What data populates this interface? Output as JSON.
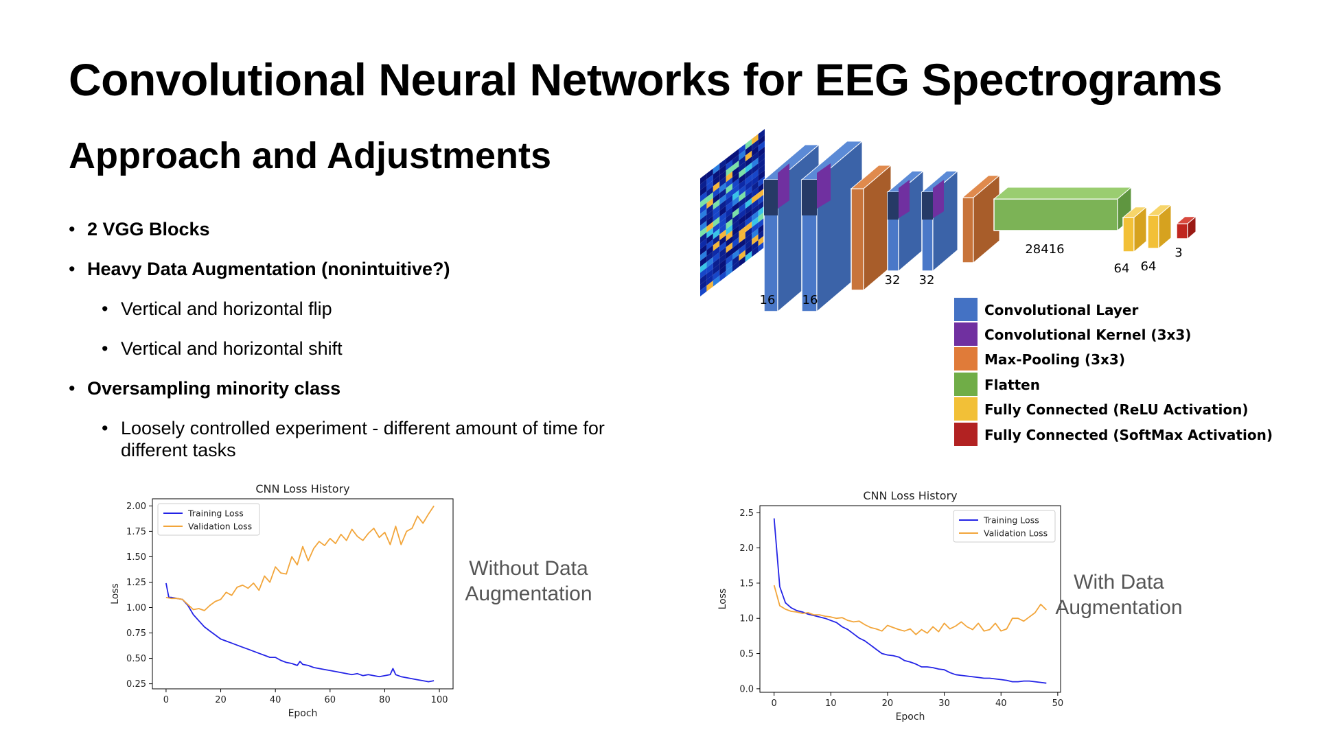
{
  "slide": {
    "title": "Convolutional Neural Networks for EEG Spectrograms",
    "subtitle": "Approach and Adjustments",
    "bullets": [
      {
        "level": 1,
        "bold": true,
        "text": "2 VGG Blocks"
      },
      {
        "level": 1,
        "bold": true,
        "text": "Heavy Data Augmentation (nonintuitive?)"
      },
      {
        "level": 2,
        "bold": false,
        "text": "Vertical and horizontal flip"
      },
      {
        "level": 2,
        "bold": false,
        "text": "Vertical and horizontal shift"
      },
      {
        "level": 1,
        "bold": true,
        "text": "Oversampling minority class"
      },
      {
        "level": 2,
        "bold": false,
        "text": "Loosely controlled experiment - different amount of time for different tasks"
      }
    ],
    "bullet_char": "•"
  },
  "diagram": {
    "layer_labels": [
      "16",
      "16",
      "32",
      "32",
      "28416",
      "64",
      "64",
      "3"
    ],
    "legend": [
      {
        "label": "Convolutional Layer",
        "color": "#4472C4"
      },
      {
        "label": "Convolutional Kernel (3x3)",
        "color": "#7030A0"
      },
      {
        "label": "Max-Pooling (3x3)",
        "color": "#E07B39"
      },
      {
        "label": "Flatten",
        "color": "#70AD47"
      },
      {
        "label": "Fully Connected  (ReLU Activation)",
        "color": "#F2C037"
      },
      {
        "label": "Fully Connected (SoftMax Activation)",
        "color": "#B22222"
      }
    ]
  },
  "captions": {
    "left_line1": "Without Data",
    "left_line2": "Augmentation",
    "right_line1": "With Data",
    "right_line2": "Augmentation"
  },
  "chart_data": [
    {
      "type": "line",
      "title": "CNN Loss History",
      "xlabel": "Epoch",
      "ylabel": "Loss",
      "xlim": [
        -5,
        105
      ],
      "ylim": [
        0.2,
        2.07
      ],
      "xticks": [
        0,
        20,
        40,
        60,
        80,
        100
      ],
      "yticks": [
        0.25,
        0.5,
        0.75,
        1.0,
        1.25,
        1.5,
        1.75,
        2.0
      ],
      "ytick_labels": [
        "0.25",
        "0.50",
        "0.75",
        "1.00",
        "1.25",
        "1.50",
        "1.75",
        "2.00"
      ],
      "legend_position": "top-left",
      "grid": false,
      "series": [
        {
          "name": "Training Loss",
          "color": "#2323e6",
          "x": [
            0,
            1,
            2,
            4,
            6,
            8,
            10,
            12,
            14,
            16,
            18,
            20,
            22,
            24,
            26,
            28,
            30,
            32,
            34,
            36,
            38,
            40,
            42,
            44,
            46,
            48,
            49,
            50,
            52,
            54,
            56,
            58,
            60,
            62,
            64,
            66,
            68,
            70,
            72,
            74,
            76,
            78,
            80,
            82,
            83,
            84,
            86,
            88,
            90,
            92,
            94,
            96,
            98
          ],
          "y": [
            1.24,
            1.1,
            1.1,
            1.09,
            1.08,
            1.02,
            0.93,
            0.87,
            0.81,
            0.77,
            0.73,
            0.69,
            0.67,
            0.65,
            0.63,
            0.61,
            0.59,
            0.57,
            0.55,
            0.53,
            0.51,
            0.51,
            0.48,
            0.46,
            0.45,
            0.43,
            0.47,
            0.44,
            0.43,
            0.41,
            0.4,
            0.39,
            0.38,
            0.37,
            0.36,
            0.35,
            0.34,
            0.35,
            0.33,
            0.34,
            0.33,
            0.32,
            0.33,
            0.34,
            0.4,
            0.34,
            0.32,
            0.31,
            0.3,
            0.29,
            0.28,
            0.27,
            0.28
          ]
        },
        {
          "name": "Validation Loss",
          "color": "#f2a53a",
          "x": [
            0,
            2,
            4,
            6,
            8,
            10,
            12,
            14,
            16,
            18,
            20,
            22,
            24,
            26,
            28,
            30,
            32,
            34,
            36,
            38,
            40,
            42,
            44,
            46,
            48,
            50,
            52,
            54,
            56,
            58,
            60,
            62,
            64,
            66,
            68,
            70,
            72,
            74,
            76,
            78,
            80,
            82,
            84,
            86,
            88,
            90,
            92,
            94,
            96,
            98
          ],
          "y": [
            1.1,
            1.09,
            1.09,
            1.08,
            1.03,
            0.98,
            0.99,
            0.97,
            1.02,
            1.06,
            1.08,
            1.15,
            1.12,
            1.2,
            1.22,
            1.19,
            1.24,
            1.17,
            1.31,
            1.25,
            1.4,
            1.34,
            1.33,
            1.5,
            1.42,
            1.6,
            1.46,
            1.58,
            1.65,
            1.61,
            1.68,
            1.63,
            1.72,
            1.66,
            1.77,
            1.7,
            1.66,
            1.73,
            1.78,
            1.69,
            1.74,
            1.62,
            1.8,
            1.62,
            1.75,
            1.78,
            1.9,
            1.83,
            1.92,
            2.0
          ]
        }
      ]
    },
    {
      "type": "line",
      "title": "CNN Loss History",
      "xlabel": "Epoch",
      "ylabel": "Loss",
      "xlim": [
        -2.5,
        50.5
      ],
      "ylim": [
        -0.05,
        2.6
      ],
      "xticks": [
        0,
        10,
        20,
        30,
        40,
        50
      ],
      "yticks": [
        0.0,
        0.5,
        1.0,
        1.5,
        2.0,
        2.5
      ],
      "ytick_labels": [
        "0.0",
        "0.5",
        "1.0",
        "1.5",
        "2.0",
        "2.5"
      ],
      "legend_position": "top-right",
      "grid": false,
      "series": [
        {
          "name": "Training Loss",
          "color": "#2323e6",
          "x": [
            0,
            1,
            2,
            3,
            4,
            5,
            6,
            7,
            8,
            9,
            10,
            11,
            12,
            13,
            14,
            15,
            16,
            17,
            18,
            19,
            20,
            21,
            22,
            23,
            24,
            25,
            26,
            27,
            28,
            29,
            30,
            31,
            32,
            33,
            34,
            35,
            36,
            37,
            38,
            39,
            40,
            41,
            42,
            43,
            44,
            45,
            46,
            47,
            48
          ],
          "y": [
            2.42,
            1.45,
            1.22,
            1.15,
            1.11,
            1.09,
            1.06,
            1.04,
            1.02,
            1.0,
            0.97,
            0.94,
            0.88,
            0.84,
            0.78,
            0.72,
            0.68,
            0.62,
            0.56,
            0.5,
            0.48,
            0.47,
            0.45,
            0.4,
            0.38,
            0.35,
            0.31,
            0.31,
            0.3,
            0.28,
            0.27,
            0.23,
            0.2,
            0.19,
            0.18,
            0.17,
            0.16,
            0.15,
            0.15,
            0.14,
            0.13,
            0.12,
            0.1,
            0.1,
            0.11,
            0.11,
            0.1,
            0.09,
            0.08
          ]
        },
        {
          "name": "Validation Loss",
          "color": "#f2a53a",
          "x": [
            0,
            1,
            2,
            3,
            4,
            5,
            6,
            7,
            8,
            9,
            10,
            11,
            12,
            13,
            14,
            15,
            16,
            17,
            18,
            19,
            20,
            21,
            22,
            23,
            24,
            25,
            26,
            27,
            28,
            29,
            30,
            31,
            32,
            33,
            34,
            35,
            36,
            37,
            38,
            39,
            40,
            41,
            42,
            43,
            44,
            45,
            46,
            47,
            48
          ],
          "y": [
            1.47,
            1.18,
            1.13,
            1.1,
            1.09,
            1.07,
            1.08,
            1.05,
            1.05,
            1.03,
            1.02,
            1.0,
            1.01,
            0.97,
            0.95,
            0.96,
            0.91,
            0.87,
            0.85,
            0.82,
            0.9,
            0.87,
            0.84,
            0.82,
            0.85,
            0.77,
            0.84,
            0.79,
            0.88,
            0.81,
            0.93,
            0.85,
            0.89,
            0.95,
            0.88,
            0.84,
            0.93,
            0.82,
            0.84,
            0.93,
            0.82,
            0.85,
            1.0,
            1.0,
            0.96,
            1.02,
            1.08,
            1.2,
            1.12
          ]
        }
      ]
    }
  ]
}
